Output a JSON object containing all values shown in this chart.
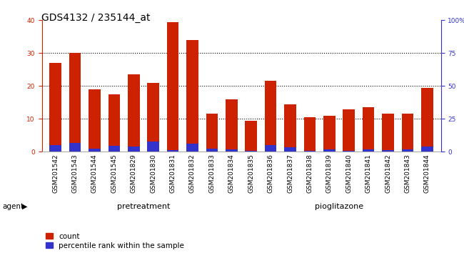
{
  "title": "GDS4132 / 235144_at",
  "categories": [
    "GSM201542",
    "GSM201543",
    "GSM201544",
    "GSM201545",
    "GSM201829",
    "GSM201830",
    "GSM201831",
    "GSM201832",
    "GSM201833",
    "GSM201834",
    "GSM201835",
    "GSM201836",
    "GSM201837",
    "GSM201838",
    "GSM201839",
    "GSM201840",
    "GSM201841",
    "GSM201842",
    "GSM201843",
    "GSM201844"
  ],
  "count_values": [
    27,
    30,
    19,
    17.5,
    23.5,
    21,
    39.5,
    34,
    11.5,
    16,
    9.5,
    21.5,
    14.5,
    10.5,
    11,
    13,
    13.5,
    11.5,
    11.5,
    19.5
  ],
  "percentile_values": [
    5,
    7,
    2.5,
    4.5,
    4,
    8,
    1.5,
    6,
    2.5,
    2,
    1,
    5,
    3.5,
    1,
    2,
    1,
    2,
    1.5,
    2,
    4
  ],
  "bar_color": "#cc2200",
  "blue_color": "#3333cc",
  "pretreatment_color": "#aaf0aa",
  "pioglitazone_color": "#66dd66",
  "agent_band_color": "#228822",
  "xtick_bg": "#cccccc",
  "ylim_left": [
    0,
    40
  ],
  "ylim_right": [
    0,
    100
  ],
  "yticks_left": [
    0,
    10,
    20,
    30,
    40
  ],
  "yticks_right": [
    0,
    25,
    50,
    75,
    100
  ],
  "ytick_labels_right": [
    "0",
    "25",
    "50",
    "75",
    "100%"
  ],
  "grid_color": "#000000",
  "bg_color": "#ffffff",
  "legend_count_label": "count",
  "legend_pct_label": "percentile rank within the sample",
  "agent_label": "agent",
  "pretreatment_label": "pretreatment",
  "pioglitazone_label": "pioglitazone",
  "bar_width": 0.6,
  "title_fontsize": 10,
  "tick_fontsize": 6.5,
  "axis_color_left": "#cc2200",
  "axis_color_right": "#3333cc",
  "n_pretreatment": 10,
  "n_pioglitazone": 10
}
